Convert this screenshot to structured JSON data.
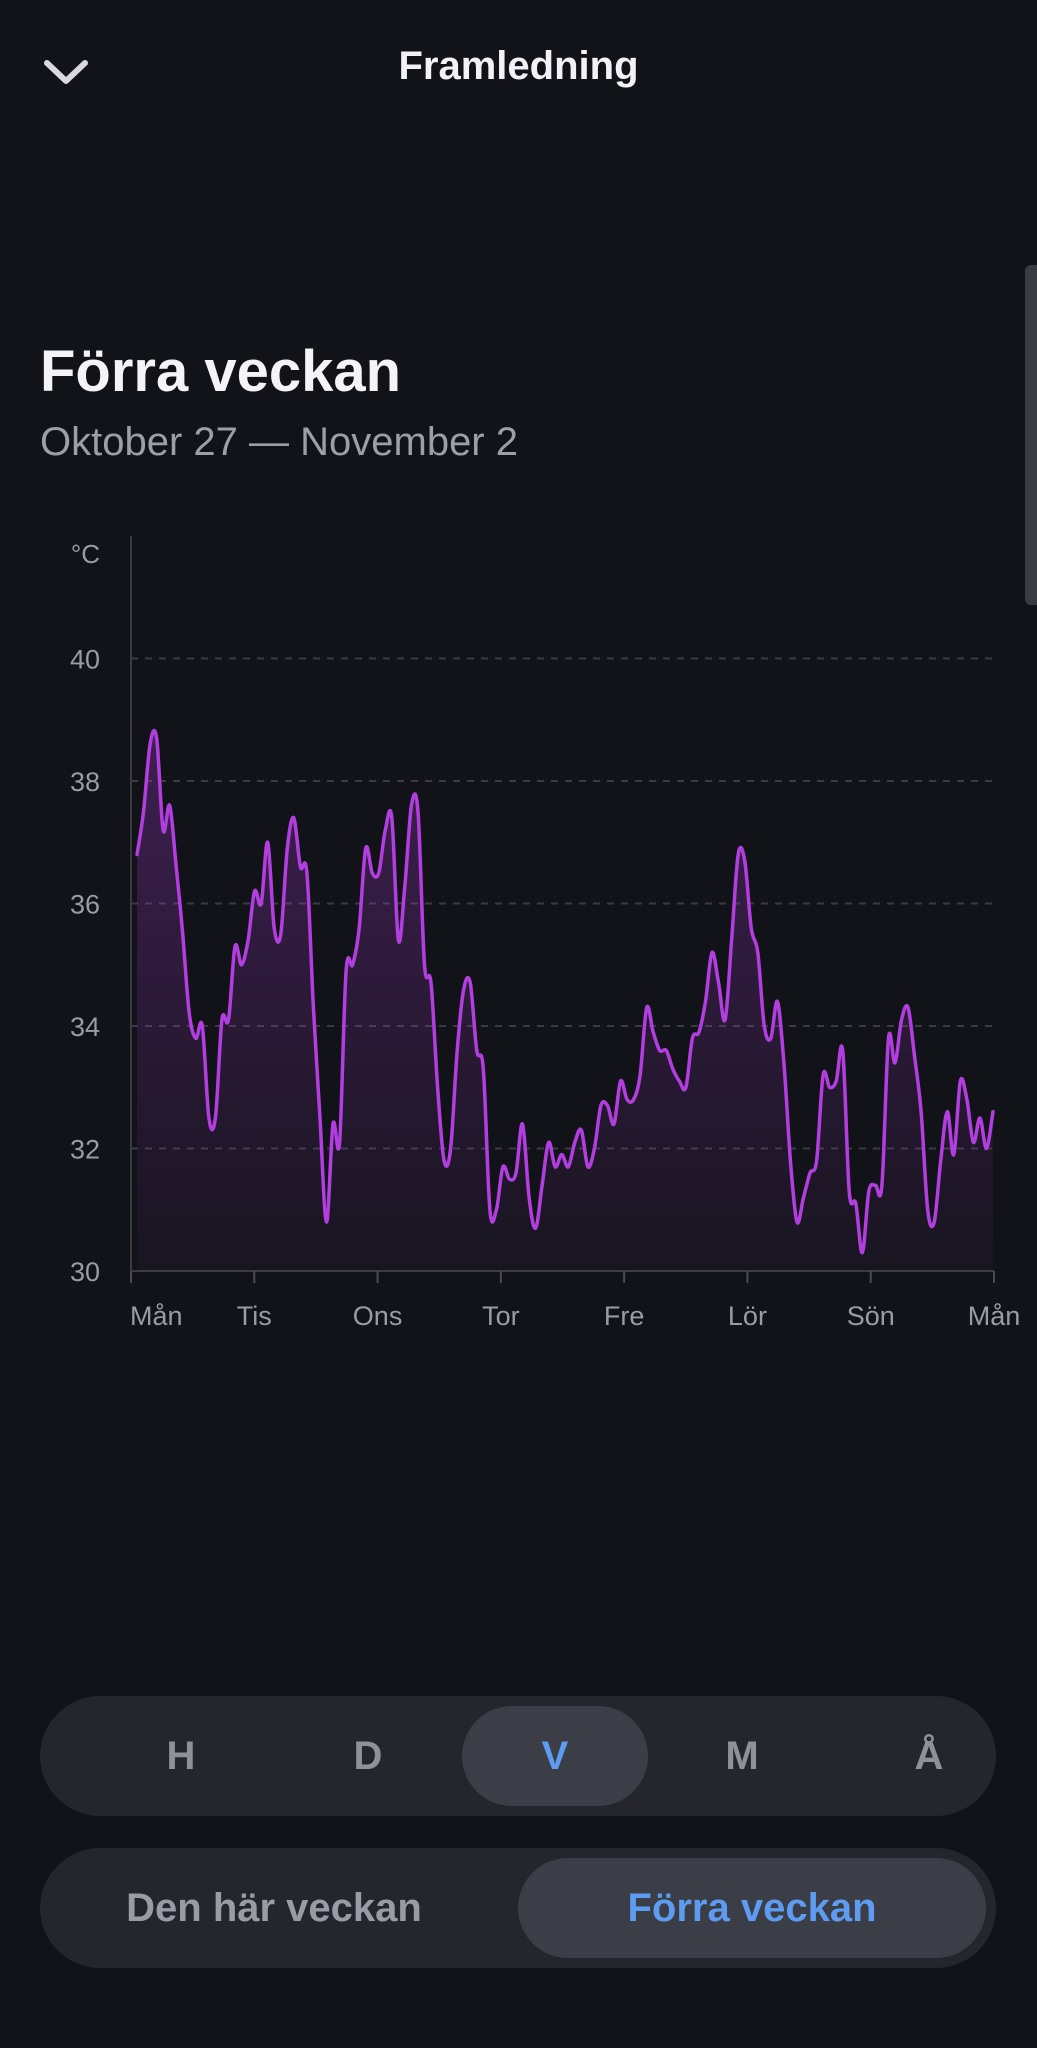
{
  "header": {
    "title": "Framledning",
    "back_icon": "chevron-down-icon"
  },
  "section": {
    "title": "Förra veckan",
    "subtitle": "Oktober 27 — November 2"
  },
  "colors": {
    "line": "#b23ee0",
    "accent": "#5d9cf0",
    "background": "#121318"
  },
  "chart_data": {
    "type": "area",
    "title": "",
    "xlabel": "",
    "ylabel": "°C",
    "ylim": [
      30,
      42
    ],
    "yticks": [
      30,
      32,
      34,
      36,
      38,
      40
    ],
    "xticks": [
      "Mån",
      "Tis",
      "Ons",
      "Tor",
      "Fre",
      "Lör",
      "Sön",
      "Mån"
    ],
    "grid": true,
    "series": [
      {
        "values": [
          36.8,
          37.5,
          38.6,
          38.7,
          37.2,
          37.6,
          36.6,
          35.5,
          34.2,
          33.8,
          34.0,
          32.5,
          32.5,
          34.1,
          34.1,
          35.3,
          35.0,
          35.4,
          36.2,
          36.0,
          37.0,
          35.6,
          35.5,
          36.9,
          37.4,
          36.6,
          36.5,
          34.3,
          32.5,
          30.8,
          32.4,
          32.1,
          34.9,
          35.0,
          35.6,
          36.9,
          36.5,
          36.5,
          37.2,
          37.4,
          35.4,
          36.3,
          37.6,
          37.5,
          35.0,
          34.7,
          33.0,
          31.8,
          32.0,
          33.6,
          34.6,
          34.7,
          33.6,
          33.3,
          31.0,
          31.0,
          31.7,
          31.5,
          31.6,
          32.4,
          31.2,
          30.7,
          31.4,
          32.1,
          31.7,
          31.9,
          31.7,
          32.1,
          32.3,
          31.7,
          32.0,
          32.7,
          32.7,
          32.4,
          33.1,
          32.8,
          32.8,
          33.2,
          34.3,
          33.9,
          33.6,
          33.6,
          33.3,
          33.1,
          33.0,
          33.8,
          33.9,
          34.4,
          35.2,
          34.7,
          34.1,
          35.4,
          36.8,
          36.7,
          35.6,
          35.2,
          34.0,
          33.8,
          34.4,
          33.4,
          31.8,
          30.8,
          31.2,
          31.6,
          31.8,
          33.2,
          33.0,
          33.1,
          33.6,
          31.3,
          31.1,
          30.3,
          31.3,
          31.4,
          31.4,
          33.8,
          33.4,
          34.1,
          34.3,
          33.5,
          32.6,
          31.0,
          30.8,
          31.8,
          32.6,
          31.9,
          33.1,
          32.8,
          32.1,
          32.5,
          32.0,
          32.6
        ]
      }
    ]
  },
  "segments": {
    "period": [
      {
        "label": "H",
        "active": false
      },
      {
        "label": "D",
        "active": false
      },
      {
        "label": "V",
        "active": true
      },
      {
        "label": "M",
        "active": false
      },
      {
        "label": "Å",
        "active": false
      }
    ],
    "week": [
      {
        "label": "Den här veckan",
        "active": false
      },
      {
        "label": "Förra veckan",
        "active": true
      }
    ]
  }
}
